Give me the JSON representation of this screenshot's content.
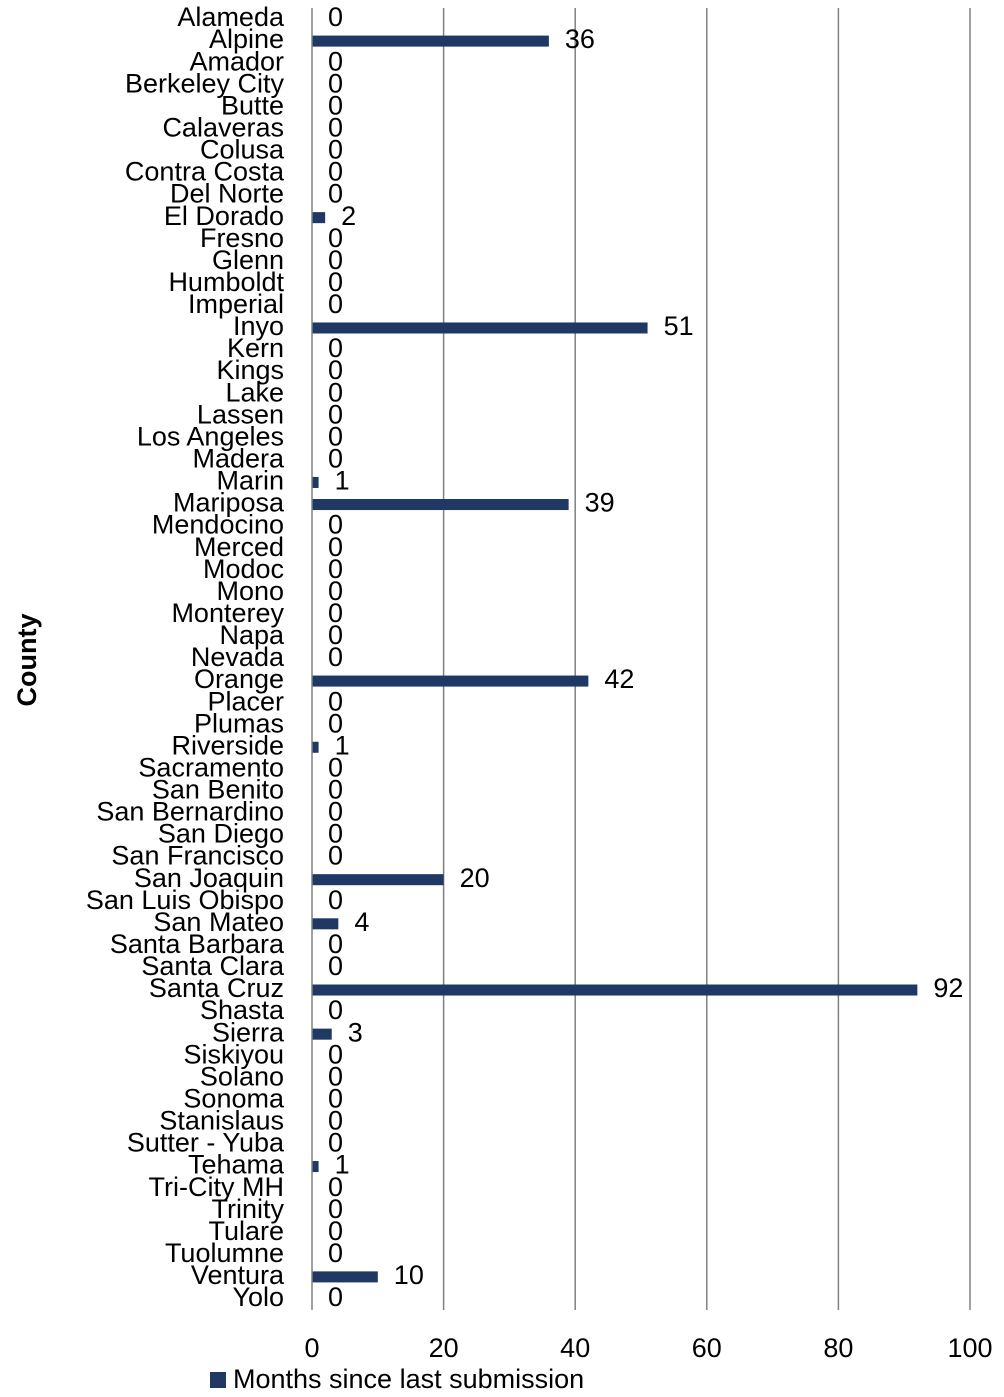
{
  "chart_data": {
    "type": "bar",
    "orientation": "horizontal",
    "ylabel": "County",
    "xlabel": "",
    "xlim": [
      0,
      100
    ],
    "xticks": [
      0,
      20,
      40,
      60,
      80,
      100
    ],
    "grid": "vertical",
    "legend_position": "bottom",
    "bar_color": "#1f3864",
    "categories": [
      "Alameda",
      "Alpine",
      "Amador",
      "Berkeley City",
      "Butte",
      "Calaveras",
      "Colusa",
      "Contra Costa",
      "Del Norte",
      "El Dorado",
      "Fresno",
      "Glenn",
      "Humboldt",
      "Imperial",
      "Inyo",
      "Kern",
      "Kings",
      "Lake",
      "Lassen",
      "Los Angeles",
      "Madera",
      "Marin",
      "Mariposa",
      "Mendocino",
      "Merced",
      "Modoc",
      "Mono",
      "Monterey",
      "Napa",
      "Nevada",
      "Orange",
      "Placer",
      "Plumas",
      "Riverside",
      "Sacramento",
      "San Benito",
      "San Bernardino",
      "San Diego",
      "San Francisco",
      "San Joaquin",
      "San Luis Obispo",
      "San Mateo",
      "Santa Barbara",
      "Santa Clara",
      "Santa Cruz",
      "Shasta",
      "Sierra",
      "Siskiyou",
      "Solano",
      "Sonoma",
      "Stanislaus",
      "Sutter - Yuba",
      "Tehama",
      "Tri-City MH",
      "Trinity",
      "Tulare",
      "Tuolumne",
      "Ventura",
      "Yolo"
    ],
    "series": [
      {
        "name": "Months since last submission",
        "values": [
          0,
          36,
          0,
          0,
          0,
          0,
          0,
          0,
          0,
          2,
          0,
          0,
          0,
          0,
          51,
          0,
          0,
          0,
          0,
          0,
          0,
          1,
          39,
          0,
          0,
          0,
          0,
          0,
          0,
          0,
          42,
          0,
          0,
          1,
          0,
          0,
          0,
          0,
          0,
          20,
          0,
          4,
          0,
          0,
          92,
          0,
          3,
          0,
          0,
          0,
          0,
          0,
          1,
          0,
          0,
          0,
          0,
          10,
          0
        ]
      }
    ]
  }
}
